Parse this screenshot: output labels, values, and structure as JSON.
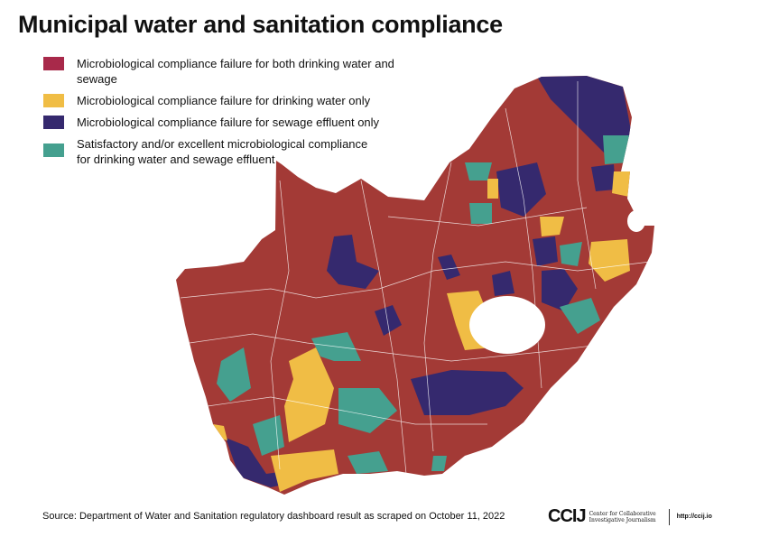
{
  "title": "Municipal water and sanitation compliance",
  "legend": [
    {
      "label": "Microbiological compliance failure for both drinking water and sewage",
      "color": "#a8294a"
    },
    {
      "label": "Microbiological compliance failure for drinking water only",
      "color": "#f0bd45"
    },
    {
      "label": "Microbiological compliance failure for sewage effluent only",
      "color": "#35296e"
    },
    {
      "label": "Satisfactory and/or excellent microbiological compliance for drinking water and sewage effluent",
      "color": "#45a08f"
    }
  ],
  "map_colors": {
    "both": "#a33a36",
    "drinking": "#f0bd45",
    "sewage": "#35296e",
    "satisfactory": "#45a08f"
  },
  "source": "Source: Department of Water and Sanitation regulatory dashboard result as scraped on October 11, 2022",
  "logo": {
    "mark": "CCIJ",
    "name": "Center for Collaborative Investigative Journalism",
    "url": "http://ccij.io"
  }
}
